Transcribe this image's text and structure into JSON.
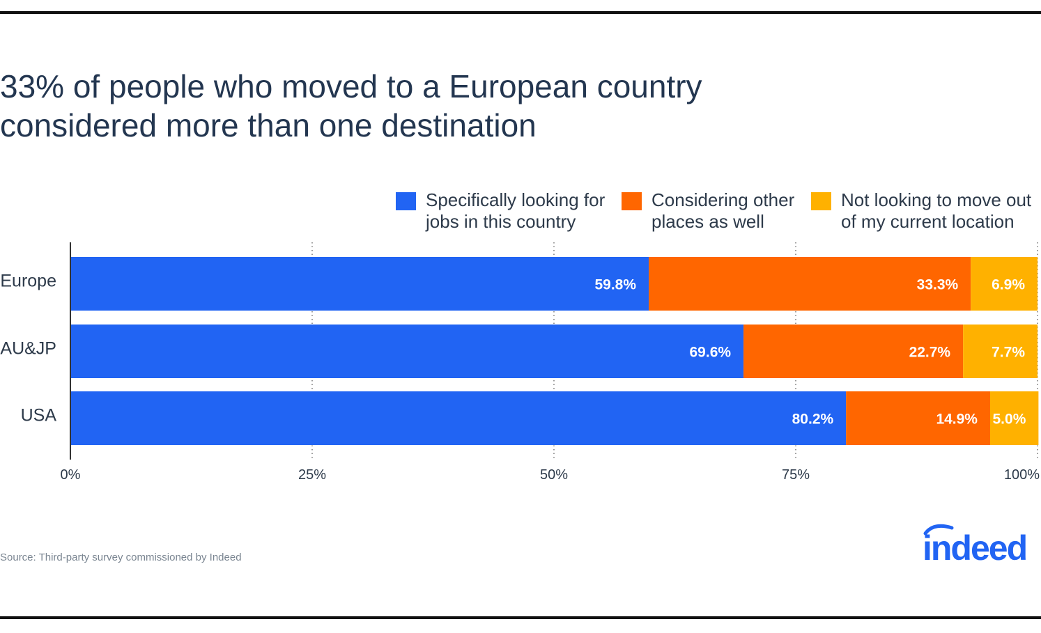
{
  "title": "33% of people who moved to a European country considered more than one destination",
  "source": "Source: Third-party survey commissioned by Indeed",
  "logo_text": "indeed",
  "colors": {
    "blue": "#2164f3",
    "orange": "#ff6600",
    "yellow": "#ffb100",
    "text": "#2d3a4a",
    "title": "#233650",
    "logo": "#2164f3"
  },
  "legend": [
    {
      "label": "Specifically looking for\njobs in this country",
      "color": "#2164f3"
    },
    {
      "label": "Considering other\nplaces as well",
      "color": "#ff6600"
    },
    {
      "label": "Not looking to move out\nof my current location",
      "color": "#ffb100"
    }
  ],
  "chart_data": {
    "type": "bar",
    "orientation": "horizontal",
    "stacked": true,
    "categories": [
      "Europe",
      "AU&JP",
      "USA"
    ],
    "series": [
      {
        "name": "Specifically looking for jobs in this country",
        "values": [
          59.8,
          69.6,
          80.2
        ],
        "labels": [
          "59.8%",
          "69.6%",
          "80.2%"
        ],
        "color": "#2164f3"
      },
      {
        "name": "Considering other places as well",
        "values": [
          33.3,
          22.7,
          14.9
        ],
        "labels": [
          "33.3%",
          "22.7%",
          "14.9%"
        ],
        "color": "#ff6600"
      },
      {
        "name": "Not looking to move out of my current location",
        "values": [
          6.9,
          7.7,
          5.0
        ],
        "labels": [
          "6.9%",
          "7.7%",
          "5.0%"
        ],
        "color": "#ffb100"
      }
    ],
    "xlim": [
      0,
      100
    ],
    "xticks": [
      0,
      25,
      50,
      75,
      100
    ],
    "xtick_labels": [
      "0%",
      "25%",
      "50%",
      "75%",
      "100%"
    ],
    "grid": "dotted vertical",
    "legend_position": "top-right"
  }
}
